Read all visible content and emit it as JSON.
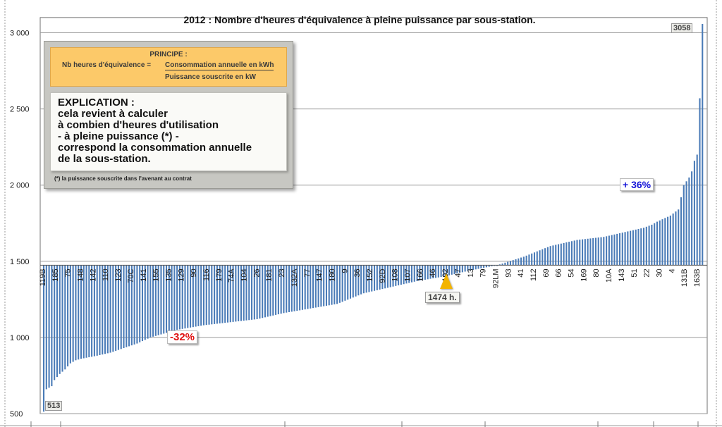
{
  "chart_data": {
    "type": "bar",
    "title": "2012 : Nombre d'heures d'équivalence à pleine puissance par sous-station.",
    "xlabel": "",
    "ylabel": "",
    "ylim": [
      500,
      3100
    ],
    "yticks": [
      500,
      1000,
      1500,
      2000,
      2500,
      3000
    ],
    "ytick_labels": [
      "500",
      "1 000",
      "1 500",
      "2 000",
      "2 500",
      "3 000"
    ],
    "baseline": 1474,
    "grid": true,
    "bar_color": "#4a7bb7",
    "n_bars": 248,
    "x_tick_labels": [
      "119B",
      "185",
      "75",
      "148",
      "142",
      "110",
      "123",
      "70C",
      "141",
      "155",
      "135",
      "129",
      "90",
      "116",
      "179",
      "74A",
      "104",
      "26",
      "181",
      "23",
      "132A",
      "77",
      "147",
      "180",
      "9",
      "36",
      "152",
      "92D",
      "108",
      "107",
      "166",
      "46",
      "192",
      "47",
      "13",
      "79",
      "92LM",
      "93",
      "41",
      "112",
      "69",
      "66",
      "54",
      "169",
      "80",
      "10A",
      "143",
      "51",
      "22",
      "30",
      "4",
      "131B",
      "163B"
    ],
    "profile_x": [
      0,
      1,
      2,
      3,
      4,
      5,
      6,
      7,
      8,
      9,
      10,
      12,
      14,
      17,
      20,
      25,
      30,
      35,
      40,
      50,
      60,
      70,
      80,
      90,
      100,
      110,
      120,
      130,
      140,
      150,
      160,
      170,
      180,
      190,
      200,
      210,
      215,
      220,
      225,
      228,
      230,
      235,
      238,
      240,
      242,
      243,
      244,
      245,
      246,
      247
    ],
    "profile_y": [
      513,
      660,
      670,
      680,
      720,
      740,
      760,
      775,
      790,
      810,
      830,
      850,
      860,
      870,
      880,
      900,
      930,
      960,
      1000,
      1050,
      1080,
      1100,
      1120,
      1160,
      1190,
      1220,
      1290,
      1330,
      1370,
      1400,
      1440,
      1474,
      1530,
      1600,
      1640,
      1660,
      1680,
      1700,
      1720,
      1740,
      1760,
      1800,
      1840,
      2000,
      2050,
      2090,
      2160,
      2200,
      2570,
      3058
    ]
  },
  "annotations": {
    "max_label": "3058",
    "min_label": "513",
    "mean_label": "1474 h.",
    "plus_label": "+ 36%",
    "minus_label": "-32%",
    "mean_arrow": "up-arrow-icon"
  },
  "principe": {
    "header": "PRINCIPE :",
    "lhs": "Nb heures d'équivalence =",
    "numerator": "Consommation annuelle en kWh",
    "denominator": "Puissance souscrite en kW"
  },
  "explication": {
    "lines": [
      "EXPLICATION :",
      "cela revient à calculer",
      "à combien d'heures d'utilisation",
      "- à pleine puissance (*) -",
      "correspond la consommation annuelle",
      "de la sous-station."
    ],
    "footnote": "(*) la puissance souscrite dans l'avenant au contrat"
  }
}
